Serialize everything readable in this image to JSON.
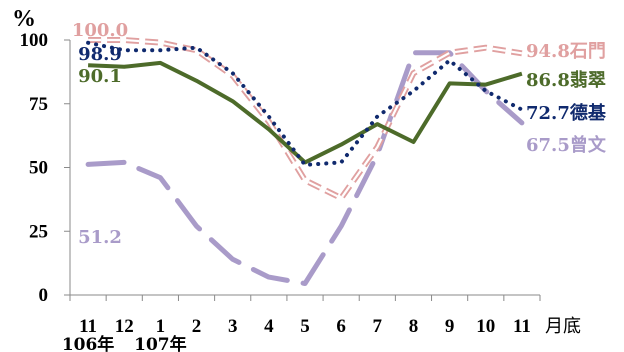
{
  "chart_data": {
    "type": "line",
    "y_unit": "%",
    "ylim": [
      0,
      100
    ],
    "y_ticks": [
      0,
      25,
      50,
      75,
      100
    ],
    "x_unit": "月底",
    "categories": [
      "11",
      "12",
      "1",
      "2",
      "3",
      "4",
      "5",
      "6",
      "7",
      "8",
      "9",
      "10",
      "11"
    ],
    "year_labels": [
      {
        "text": "106年",
        "under": "11"
      },
      {
        "text": "107年",
        "under": "1"
      }
    ],
    "series": [
      {
        "name": "石門",
        "color": "#e0a0a0",
        "style": "dashed-double",
        "values": [
          100.0,
          100,
          99,
          96,
          86,
          68,
          45,
          38,
          58,
          87,
          95,
          97,
          94.8
        ],
        "start_label": "100.0",
        "end_label": "94.8"
      },
      {
        "name": "德基",
        "color": "#102a6e",
        "style": "dotted",
        "values": [
          98.9,
          96,
          96,
          97,
          87,
          70,
          51,
          52,
          70,
          80,
          92,
          80,
          72.7
        ],
        "start_label": "98.9",
        "end_label": "72.7"
      },
      {
        "name": "翡翠",
        "color": "#4d6b2a",
        "style": "solid",
        "values": [
          90.1,
          89.5,
          91,
          84,
          76,
          65,
          52,
          59,
          67,
          60,
          83,
          82.5,
          86.8
        ],
        "start_label": "90.1",
        "end_label": "86.8"
      },
      {
        "name": "曾文",
        "color": "#a99bc9",
        "style": "long-dash",
        "values": [
          51.2,
          52,
          46,
          27,
          14,
          7,
          4.5,
          27,
          55,
          95,
          95,
          80,
          67.5
        ],
        "start_label": "51.2",
        "end_label": "67.5"
      }
    ]
  }
}
